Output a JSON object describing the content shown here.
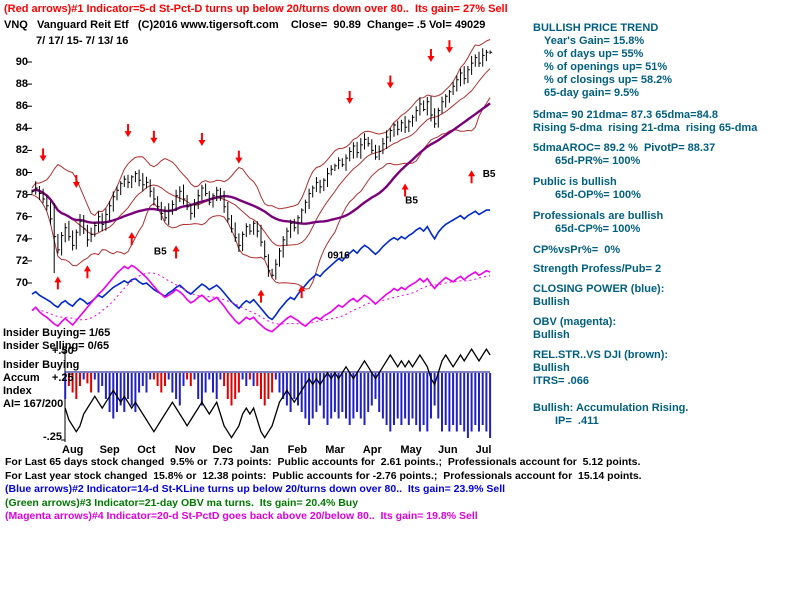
{
  "colors": {
    "red": "#ff0000",
    "panel": "#006080",
    "band": "#b03030",
    "ma65": "#7a007a",
    "price": "#000000",
    "cp": "#0028d0",
    "obv": "#ee00ee",
    "hist_pos": "#2020c8",
    "hist_neg": "#e00000",
    "blue_line": "#0000e0",
    "green_line": "#007a00",
    "magenta_line": "#e000e0",
    "black": "#000000"
  },
  "header": {
    "indicator1": "(Red arrows)#1 Indicator=5-d St-Pct-D turns up below 20/turns down over 80..  Its gain= 27% Sell",
    "ticker_line": "VNQ   Vanguard Reit Etf   (C)2016 www.tigersoft.com    Close=  90.89  Change= .5 Vol= 49029",
    "date_range": "7/ 17/ 15- 7/ 13/ 16"
  },
  "left_labels": {
    "insider_buying": "Insider Buying= 1/65",
    "insider_selling": "Insider Selling= 0/65",
    "scale_top": "+.50",
    "pane_label_1": "Insider Buying",
    "pane_label_2": "Accum    +.25",
    "pane_label_3": "Index",
    "pane_label_4": "AI= 167/200",
    "scale_bottom": "-.25"
  },
  "right_panel": {
    "lines": [
      {
        "text": "BULLISH PRICE TREND",
        "indent": 0,
        "gap": 0
      },
      {
        "text": "Year's Gain= 15.8%",
        "indent": 1,
        "gap": 0
      },
      {
        "text": "% of days up= 55%",
        "indent": 1,
        "gap": 0
      },
      {
        "text": "% of openings up= 51%",
        "indent": 1,
        "gap": 0
      },
      {
        "text": "% of closings up= 58.2%",
        "indent": 1,
        "gap": 0
      },
      {
        "text": "65-day gain= 9.5%",
        "indent": 1,
        "gap": 0
      },
      {
        "text": "5dma= 90 21dma= 87.3 65dma=84.8",
        "indent": 0,
        "gap": 9
      },
      {
        "text": "Rising 5-dma  rising 21-dma  rising 65-dma",
        "indent": 0,
        "gap": 0
      },
      {
        "text": "5dmaAROC= 89.2 %  PivotP= 88.37",
        "indent": 0,
        "gap": 7
      },
      {
        "text": "65d-PR%= 100%",
        "indent": 2,
        "gap": 0
      },
      {
        "text": "Public is bullish",
        "indent": 0,
        "gap": 8
      },
      {
        "text": "65d-OP%= 100%",
        "indent": 2,
        "gap": 0
      },
      {
        "text": "Professionals are bullish",
        "indent": 0,
        "gap": 8
      },
      {
        "text": "65d-CP%= 100%",
        "indent": 2,
        "gap": 0
      },
      {
        "text": "CP%vsPr%=  0%",
        "indent": 0,
        "gap": 8
      },
      {
        "text": "Strength Profess/Pub= 2",
        "indent": 0,
        "gap": 6
      },
      {
        "text": "CLOSING POWER (blue):",
        "indent": 0,
        "gap": 7
      },
      {
        "text": "Bullish",
        "indent": 0,
        "gap": 0
      },
      {
        "text": "OBV (magenta):",
        "indent": 0,
        "gap": 7
      },
      {
        "text": "Bullish",
        "indent": 0,
        "gap": 0
      },
      {
        "text": "REL.STR..VS DJI (brown):",
        "indent": 0,
        "gap": 7
      },
      {
        "text": "Bullish",
        "indent": 0,
        "gap": 0
      },
      {
        "text": "ITRS= .066",
        "indent": 0,
        "gap": 0
      },
      {
        "text": "Bullish: Accumulation Rising.",
        "indent": 0,
        "gap": 14
      },
      {
        "text": "IP=  .411",
        "indent": 2,
        "gap": 0
      }
    ]
  },
  "footer": {
    "lines": [
      {
        "text": "For Last 65 days stock changed  9.5% or  7.73 points:  Public accounts for  2.61 points.;  Professionals account for  5.12 points.",
        "color": "#000000"
      },
      {
        "text": "For Last year stock changed  15.8% or  12.38 points:  Public accounts for -2.76 points.;  Professionals account for  15.14 points.",
        "color": "#000000"
      },
      {
        "text": "(Blue arrows)#2 Indicator=14-d St-KLine turns up below 20/turns down over 80..  Its gain= 23.9% Sell",
        "color": "#0000e0"
      },
      {
        "text": "(Green arrows)#3 Indicator=21-day OBV ma turns.  Its gain= 20.4% Buy",
        "color": "#007a00"
      },
      {
        "text": "(Magenta arrows)#4 Indicator=20-d St-PctD goes back above 20/below 80..  Its gain= 19.8% Sell",
        "color": "#e000e0"
      }
    ]
  },
  "chart_data": [
    {
      "type": "line",
      "title": "VNQ Vanguard Reit Etf daily price with 21-dma bands, 65-dma, Closing Power and OBV",
      "date_range": "7/17/15 - 7/13/16",
      "last_close": 90.89,
      "change": 0.5,
      "volume": 49029,
      "ylim": [
        65,
        92
      ],
      "yticks": [
        90,
        88,
        86,
        84,
        82,
        80,
        78,
        76,
        74,
        72,
        70
      ],
      "x_months": [
        "Aug",
        "Sep",
        "Oct",
        "Nov",
        "Dec",
        "Jan",
        "Feb",
        "Mar",
        "Apr",
        "May",
        "Jun",
        "Jul"
      ],
      "spike_bar": {
        "index": 6,
        "high": 77.2,
        "low": 70.9
      },
      "series": [
        {
          "name": "price_close",
          "color": "#000000",
          "values": [
            78.3,
            78.6,
            78.1,
            77.6,
            77.0,
            75.8,
            74.2,
            73.0,
            74.3,
            75.0,
            74.2,
            73.4,
            74.6,
            75.6,
            74.9,
            73.9,
            74.4,
            75.2,
            76.0,
            75.3,
            76.2,
            77.0,
            77.8,
            78.4,
            79.0,
            79.4,
            79.1,
            79.6,
            79.9,
            79.3,
            78.9,
            79.1,
            78.3,
            77.6,
            76.9,
            76.3,
            75.9,
            76.6,
            77.1,
            77.9,
            78.3,
            77.6,
            76.9,
            76.3,
            77.1,
            77.9,
            78.6,
            78.1,
            77.3,
            77.9,
            78.4,
            77.8,
            76.9,
            75.8,
            74.9,
            74.1,
            73.4,
            74.4,
            75.1,
            74.7,
            75.4,
            74.7,
            73.7,
            72.4,
            71.1,
            70.7,
            71.7,
            72.9,
            73.9,
            74.7,
            75.4,
            75.0,
            75.9,
            76.6,
            77.3,
            78.1,
            78.6,
            79.1,
            78.7,
            79.3,
            79.9,
            80.3,
            80.6,
            81.1,
            80.7,
            81.3,
            81.9,
            82.4,
            81.8,
            82.5,
            83.0,
            82.6,
            82.0,
            81.4,
            81.9,
            82.6,
            83.2,
            83.8,
            84.3,
            83.9,
            84.5,
            84.1,
            84.6,
            85.0,
            85.6,
            86.2,
            85.7,
            86.4,
            85.2,
            84.4,
            85.6,
            86.4,
            86.9,
            87.3,
            87.8,
            88.4,
            89.0,
            88.5,
            89.3,
            89.9,
            90.4,
            89.9,
            90.6,
            90.89,
            90.89
          ]
        },
        {
          "name": "closing_power",
          "color": "#0028d0",
          "values": [
            69.0,
            69.2,
            68.9,
            68.7,
            68.5,
            68.3,
            68.0,
            67.8,
            68.2,
            68.4,
            68.1,
            67.9,
            68.3,
            68.6,
            68.4,
            68.1,
            68.3,
            68.6,
            68.9,
            68.7,
            69.0,
            69.3,
            69.6,
            69.8,
            70.0,
            70.2,
            70.0,
            70.3,
            70.4,
            70.1,
            69.9,
            70.0,
            69.7,
            69.4,
            69.2,
            69.0,
            68.8,
            69.1,
            69.3,
            69.6,
            69.8,
            69.5,
            69.2,
            69.0,
            69.3,
            69.6,
            69.9,
            69.7,
            69.4,
            69.6,
            69.8,
            69.5,
            69.1,
            68.7,
            68.3,
            68.0,
            67.7,
            68.1,
            68.4,
            68.2,
            68.5,
            68.1,
            67.7,
            67.3,
            66.9,
            66.7,
            67.1,
            67.6,
            68.0,
            68.4,
            68.7,
            68.5,
            69.0,
            69.4,
            69.8,
            70.2,
            70.5,
            70.8,
            70.6,
            71.0,
            71.3,
            71.6,
            71.9,
            72.2,
            72.0,
            72.4,
            72.7,
            73.0,
            72.7,
            73.1,
            73.4,
            73.2,
            72.9,
            72.6,
            72.9,
            73.3,
            73.6,
            73.9,
            74.1,
            73.9,
            74.2,
            74.0,
            74.3,
            74.5,
            74.8,
            75.0,
            74.7,
            75.1,
            74.5,
            74.0,
            74.6,
            75.0,
            75.3,
            75.5,
            75.7,
            75.9,
            76.1,
            75.8,
            76.1,
            76.3,
            76.5,
            76.2,
            76.4,
            76.6,
            76.6
          ]
        },
        {
          "name": "obv",
          "color": "#ee00ee",
          "values": [
            67.5,
            67.8,
            67.4,
            67.1,
            66.9,
            66.6,
            66.3,
            66.1,
            66.5,
            66.8,
            66.5,
            66.2,
            66.6,
            67.0,
            67.4,
            67.8,
            68.2,
            68.6,
            69.0,
            69.3,
            69.7,
            70.1,
            70.5,
            70.9,
            71.2,
            71.5,
            71.3,
            71.6,
            71.4,
            71.1,
            70.8,
            70.5,
            70.1,
            69.7,
            69.3,
            69.0,
            68.7,
            68.9,
            69.1,
            69.4,
            69.2,
            68.9,
            68.5,
            68.2,
            68.4,
            68.7,
            68.9,
            68.6,
            68.3,
            68.5,
            68.7,
            68.3,
            67.9,
            67.4,
            67.0,
            66.6,
            66.3,
            66.6,
            66.9,
            66.7,
            66.9,
            66.5,
            66.2,
            65.9,
            65.7,
            65.6,
            65.9,
            66.2,
            66.5,
            66.8,
            67.0,
            66.8,
            66.6,
            66.3,
            66.1,
            66.4,
            66.7,
            66.9,
            66.7,
            67.0,
            67.2,
            67.4,
            67.7,
            68.0,
            67.8,
            68.1,
            68.4,
            68.6,
            68.3,
            68.6,
            68.9,
            68.7,
            68.4,
            68.1,
            68.4,
            68.7,
            69.0,
            69.2,
            69.5,
            69.3,
            69.6,
            69.4,
            69.7,
            69.9,
            70.1,
            70.4,
            70.1,
            70.4,
            69.9,
            69.5,
            69.9,
            70.2,
            70.5,
            70.3,
            70.1,
            70.4,
            70.6,
            70.3,
            70.6,
            70.8,
            71.0,
            70.7,
            70.9,
            71.1,
            71.0
          ]
        }
      ],
      "sell_arrows": [
        {
          "i": 3,
          "p": 81.0
        },
        {
          "i": 12,
          "p": 78.6
        },
        {
          "i": 26,
          "p": 83.2
        },
        {
          "i": 33,
          "p": 82.6
        },
        {
          "i": 46,
          "p": 82.4
        },
        {
          "i": 56,
          "p": 80.8
        },
        {
          "i": 86,
          "p": 86.2
        },
        {
          "i": 97,
          "p": 87.6
        },
        {
          "i": 108,
          "p": 90.0
        },
        {
          "i": 113,
          "p": 90.8
        }
      ],
      "buy_arrows": [
        {
          "i": 7,
          "p": 70.6
        },
        {
          "i": 15,
          "p": 71.6
        },
        {
          "i": 27,
          "p": 74.6
        },
        {
          "i": 39,
          "p": 73.4
        },
        {
          "i": 62,
          "p": 69.4
        },
        {
          "i": 73,
          "p": 69.8
        },
        {
          "i": 101,
          "p": 79.0
        },
        {
          "i": 119,
          "p": 80.2
        }
      ],
      "annotations": [
        {
          "text": "B5",
          "i": 33,
          "p": 72.6
        },
        {
          "text": "0916",
          "i": 80,
          "p": 72.2
        },
        {
          "text": "B5",
          "i": 101,
          "p": 77.2
        },
        {
          "text": "B5",
          "i": 122,
          "p": 79.6
        }
      ]
    },
    {
      "type": "bar",
      "name": "Accumulation Index",
      "ai_reading": "AI= 167/200",
      "scale_labels": [
        "+.50",
        "-.25"
      ],
      "values": [
        0.3,
        0.35,
        0.25,
        0.2,
        0.1,
        -0.05,
        -0.1,
        0.05,
        0.15,
        0.2,
        -0.1,
        -0.15,
        -0.2,
        -0.1,
        0.05,
        -0.08,
        -0.15,
        0.05,
        0.15,
        0.1,
        0.2,
        0.3,
        0.35,
        0.3,
        0.25,
        0.3,
        0.2,
        0.25,
        0.3,
        0.15,
        0.1,
        0.15,
        0.05,
        -0.05,
        -0.1,
        -0.15,
        -0.1,
        0.05,
        0.15,
        0.2,
        0.25,
        0.1,
        -0.05,
        -0.1,
        0.05,
        0.2,
        0.25,
        0.15,
        0.05,
        0.15,
        0.2,
        0.05,
        -0.1,
        -0.2,
        -0.25,
        -0.2,
        -0.15,
        0.05,
        0.1,
        -0.05,
        0.1,
        -0.1,
        -0.2,
        -0.25,
        -0.2,
        -0.15,
        0.05,
        0.15,
        0.2,
        0.25,
        0.3,
        0.2,
        0.25,
        0.3,
        0.35,
        0.4,
        0.35,
        0.3,
        0.25,
        0.35,
        0.4,
        0.35,
        0.3,
        0.35,
        0.3,
        0.35,
        0.4,
        0.35,
        0.3,
        0.35,
        0.4,
        0.3,
        0.25,
        0.2,
        0.3,
        0.35,
        0.4,
        0.45,
        0.4,
        0.35,
        0.4,
        0.35,
        0.4,
        0.35,
        0.4,
        0.45,
        0.4,
        0.45,
        0.35,
        0.25,
        0.35,
        0.45,
        0.4,
        0.45,
        0.4,
        0.45,
        0.4,
        0.45,
        0.5,
        0.45,
        0.4,
        0.45,
        0.4,
        0.45,
        0.5
      ],
      "line_overlay": {
        "name": "REL.STR. vs DJI",
        "color": "#000000",
        "values": [
          0.15,
          0.1,
          0.05,
          0.0,
          -0.05,
          -0.1,
          -0.15,
          -0.1,
          0.0,
          0.05,
          -0.05,
          -0.1,
          -0.15,
          -0.1,
          0.0,
          0.05,
          0.1,
          0.15,
          0.1,
          0.05,
          0.1,
          0.15,
          0.2,
          0.15,
          0.1,
          0.15,
          0.1,
          0.05,
          0.1,
          0.05,
          0.0,
          -0.05,
          -0.1,
          -0.15,
          -0.1,
          -0.05,
          0.0,
          0.05,
          0.1,
          0.05,
          0.0,
          -0.05,
          -0.1,
          -0.05,
          0.0,
          0.05,
          0.1,
          0.05,
          0.0,
          0.05,
          0.1,
          0.0,
          -0.1,
          -0.15,
          -0.2,
          -0.15,
          -0.1,
          0.0,
          0.05,
          0.0,
          0.05,
          -0.05,
          -0.15,
          -0.2,
          -0.15,
          -0.1,
          0.0,
          0.1,
          0.15,
          0.2,
          0.15,
          0.1,
          0.15,
          0.2,
          0.25,
          0.3,
          0.25,
          0.3,
          0.25,
          0.3,
          0.35,
          0.3,
          0.35,
          0.3,
          0.35,
          0.4,
          0.35,
          0.3,
          0.35,
          0.4,
          0.45,
          0.4,
          0.35,
          0.3,
          0.35,
          0.4,
          0.45,
          0.5,
          0.45,
          0.4,
          0.45,
          0.4,
          0.45,
          0.4,
          0.45,
          0.5,
          0.45,
          0.4,
          0.3,
          0.25,
          0.35,
          0.45,
          0.5,
          0.45,
          0.4,
          0.45,
          0.5,
          0.45,
          0.5,
          0.55,
          0.5,
          0.45,
          0.5,
          0.55,
          0.5
        ]
      }
    }
  ]
}
